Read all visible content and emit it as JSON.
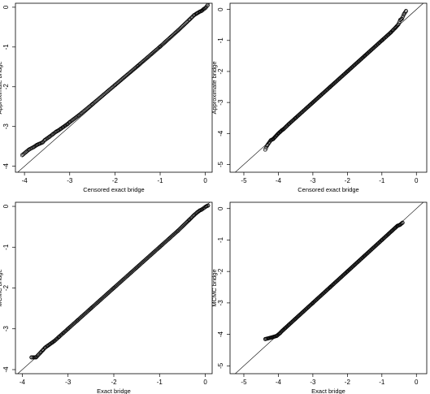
{
  "chart_data": [
    {
      "type": "scatter",
      "xlabel": "Censored exact bridge",
      "ylabel": "Approximate bridge",
      "xlim": [
        -4.2,
        0.15
      ],
      "ylim": [
        -4.15,
        0.1
      ],
      "xticks": [
        -4,
        -3,
        -2,
        -1,
        0
      ],
      "yticks": [
        -4,
        -3,
        -2,
        -1,
        0
      ],
      "reference_line": "y = x",
      "grid": false,
      "series": [
        {
          "x": [
            -4.05,
            -3.9,
            -3.8,
            -3.72,
            -3.68,
            -3.6,
            -3.55,
            -3.45,
            -3.38,
            -3.3,
            -3.25,
            -3.2,
            -3.15,
            -3.1,
            -3.05,
            -3.0,
            -2.8,
            -2.5,
            -2.0,
            -1.5,
            -1.0,
            -0.6,
            -0.35,
            -0.25,
            -0.18,
            -0.12,
            -0.08,
            -0.04,
            0.0,
            0.05
          ],
          "y": [
            -3.72,
            -3.58,
            -3.52,
            -3.46,
            -3.44,
            -3.4,
            -3.34,
            -3.26,
            -3.2,
            -3.13,
            -3.1,
            -3.06,
            -3.02,
            -2.98,
            -2.94,
            -2.89,
            -2.72,
            -2.44,
            -1.96,
            -1.48,
            -0.99,
            -0.58,
            -0.31,
            -0.2,
            -0.15,
            -0.11,
            -0.09,
            -0.05,
            -0.02,
            0.05
          ]
        }
      ]
    },
    {
      "type": "scatter",
      "xlabel": "Censored exact bridge",
      "ylabel": "Approximate bridge",
      "xlim": [
        -5.4,
        0.3
      ],
      "ylim": [
        -5.25,
        0.2
      ],
      "xticks": [
        -5,
        -4,
        -3,
        -2,
        -1,
        0
      ],
      "yticks": [
        -5,
        -4,
        -3,
        -2,
        -1,
        0
      ],
      "reference_line": "y = x",
      "grid": false,
      "series": [
        {
          "x": [
            -4.38,
            -4.32,
            -4.22,
            -4.15,
            -4.1,
            -4.05,
            -4.0,
            -3.95,
            -3.9,
            -3.85,
            -3.7,
            -3.5,
            -3.0,
            -2.5,
            -2.0,
            -1.5,
            -1.0,
            -0.75,
            -0.6,
            -0.52,
            -0.47,
            -0.42,
            -0.36,
            -0.3
          ],
          "y": [
            -4.52,
            -4.38,
            -4.22,
            -4.18,
            -4.12,
            -4.06,
            -4.0,
            -3.95,
            -3.9,
            -3.86,
            -3.7,
            -3.5,
            -3.0,
            -2.5,
            -2.0,
            -1.5,
            -1.0,
            -0.75,
            -0.58,
            -0.48,
            -0.34,
            -0.3,
            -0.15,
            -0.05
          ]
        }
      ]
    },
    {
      "type": "scatter",
      "xlabel": "Exact bridge",
      "ylabel": "MCMC bridge",
      "xlim": [
        -4.15,
        0.15
      ],
      "ylim": [
        -4.1,
        0.1
      ],
      "xticks": [
        -4,
        -3,
        -2,
        -1,
        0
      ],
      "yticks": [
        -4,
        -3,
        -2,
        -1,
        0
      ],
      "reference_line": "y = x",
      "grid": false,
      "series": [
        {
          "x": [
            -3.8,
            -3.7,
            -3.6,
            -3.55,
            -3.5,
            -3.45,
            -3.4,
            -3.35,
            -3.3,
            -3.25,
            -3.2,
            -3.1,
            -3.0,
            -2.8,
            -2.5,
            -2.0,
            -1.5,
            -1.0,
            -0.6,
            -0.35,
            -0.25,
            -0.18,
            -0.12,
            -0.08,
            0.02,
            0.06
          ],
          "y": [
            -3.7,
            -3.7,
            -3.58,
            -3.52,
            -3.46,
            -3.42,
            -3.38,
            -3.34,
            -3.3,
            -3.25,
            -3.2,
            -3.1,
            -3.0,
            -2.8,
            -2.5,
            -2.0,
            -1.5,
            -1.0,
            -0.6,
            -0.33,
            -0.22,
            -0.15,
            -0.1,
            -0.08,
            0.0,
            0.02
          ]
        }
      ]
    },
    {
      "type": "scatter",
      "xlabel": "Exact bridge",
      "ylabel": "MCMC bridge",
      "xlim": [
        -5.4,
        0.3
      ],
      "ylim": [
        -5.25,
        0.2
      ],
      "xticks": [
        -5,
        -4,
        -3,
        -2,
        -1,
        0
      ],
      "yticks": [
        -5,
        -4,
        -3,
        -2,
        -1,
        0
      ],
      "reference_line": "y = x",
      "grid": false,
      "series": [
        {
          "x": [
            -4.38,
            -4.2,
            -4.05,
            -3.95,
            -3.9,
            -3.85,
            -3.8,
            -3.7,
            -3.5,
            -3.0,
            -2.5,
            -2.0,
            -1.5,
            -1.0,
            -0.8,
            -0.7,
            -0.62,
            -0.55,
            -0.48,
            -0.4
          ],
          "y": [
            -4.15,
            -4.1,
            -4.05,
            -3.96,
            -3.9,
            -3.85,
            -3.8,
            -3.7,
            -3.5,
            -3.0,
            -2.5,
            -2.0,
            -1.5,
            -1.0,
            -0.8,
            -0.7,
            -0.62,
            -0.55,
            -0.52,
            -0.45
          ]
        }
      ]
    }
  ]
}
